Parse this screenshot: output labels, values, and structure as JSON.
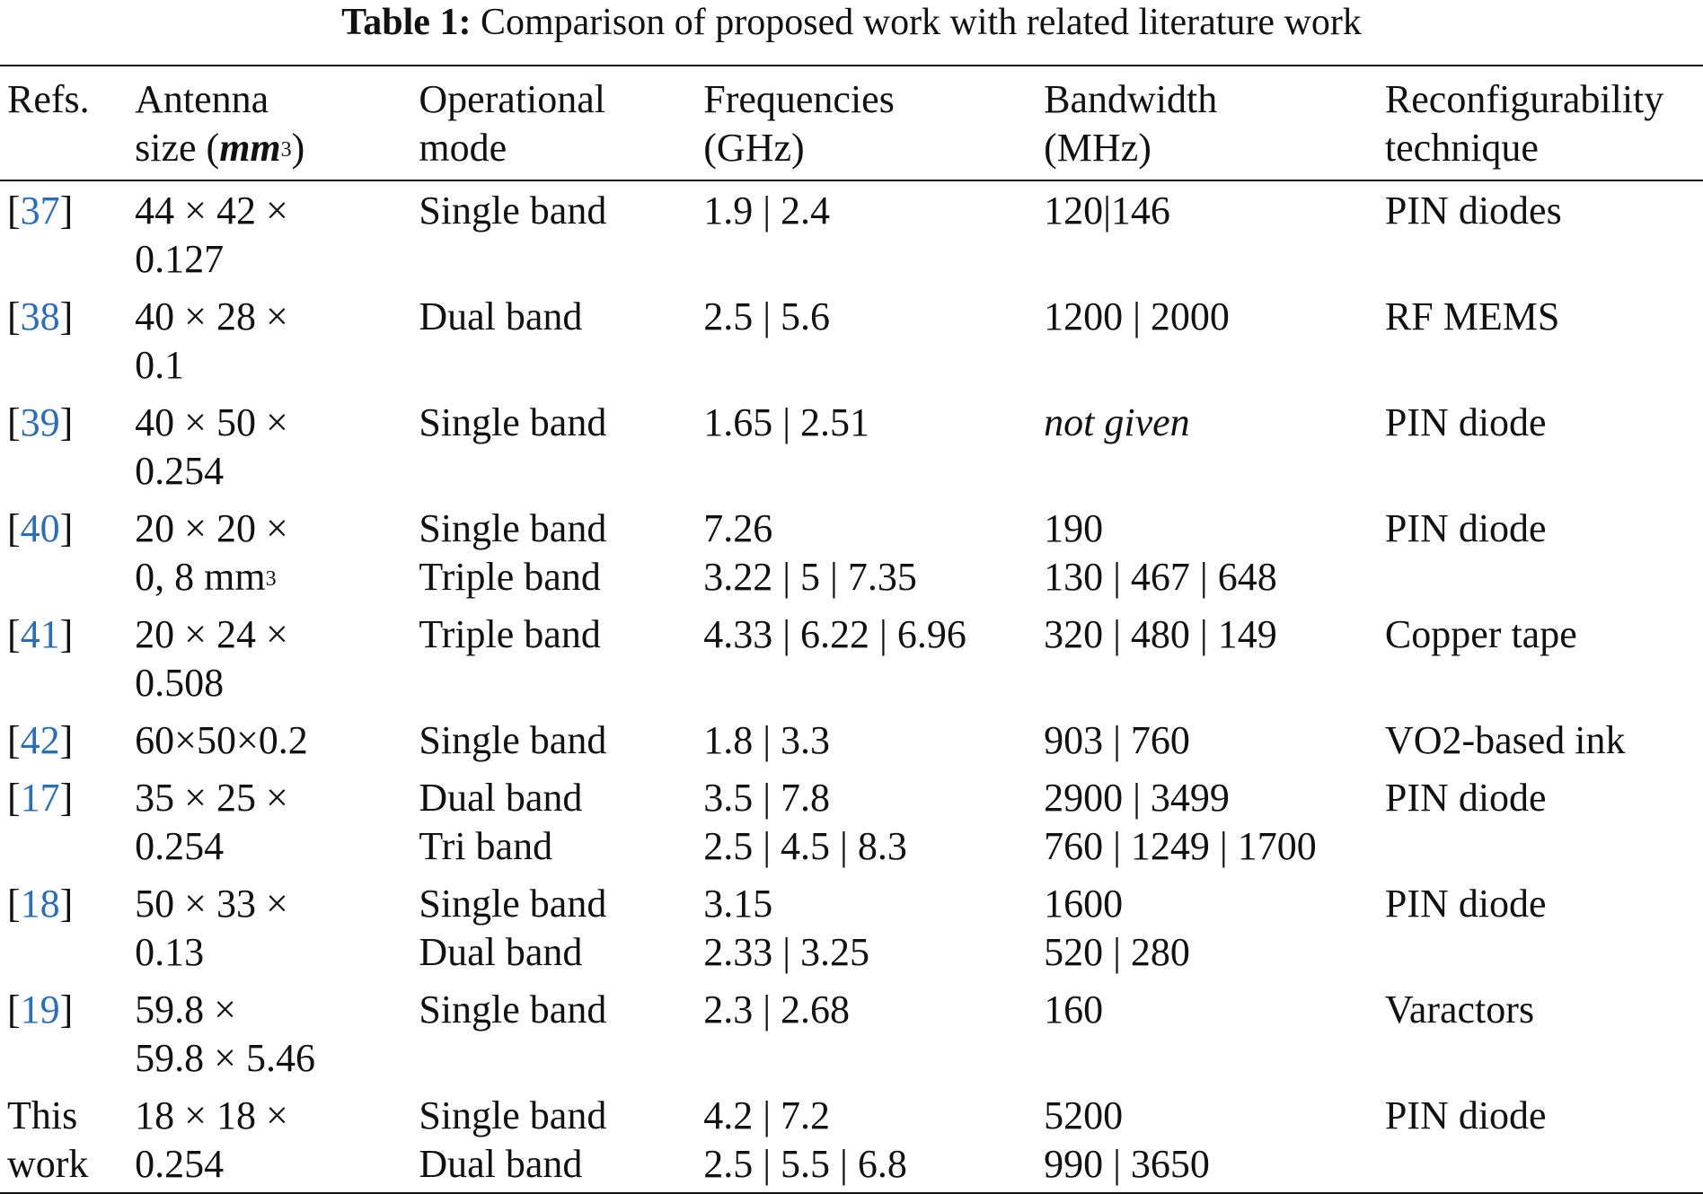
{
  "caption": {
    "label": "Table 1:",
    "text": "Comparison of proposed work with related literature work"
  },
  "headers": {
    "refs": "Refs.",
    "size_line1": "Antenna",
    "size_line2a": "size (",
    "size_unit": "mm",
    "size_sup": "3",
    "size_line2b": ")",
    "mode_line1": "Operational",
    "mode_line2": "mode",
    "freq_line1": "Frequencies",
    "freq_line2": "(GHz)",
    "bw_line1": "Bandwidth",
    "bw_line2": "(MHz)",
    "tech_line1": "Reconfigurability",
    "tech_line2": "technique"
  },
  "rows": [
    {
      "ref": "37",
      "size": [
        "44 × 42 ×",
        "0.127"
      ],
      "mode": [
        "Single band"
      ],
      "freq": [
        "1.9 | 2.4"
      ],
      "bw": [
        "120|146"
      ],
      "tech": "PIN diodes"
    },
    {
      "ref": "38",
      "size": [
        "40  ×  28  ×",
        "0.1"
      ],
      "mode": [
        "Dual band"
      ],
      "freq": [
        "2.5 | 5.6"
      ],
      "bw": [
        "1200 | 2000"
      ],
      "tech": "RF MEMS"
    },
    {
      "ref": "39",
      "size": [
        "40 × 50  ×",
        "0.254"
      ],
      "mode": [
        "Single band"
      ],
      "freq": [
        "1.65 | 2.51"
      ],
      "bw": [
        "not given"
      ],
      "tech": "PIN diode"
    },
    {
      "ref": "40",
      "size": [
        "20 × 20 ×",
        "0, 8 mm"
      ],
      "size_sup": "3",
      "mode": [
        "Single band",
        "Triple band"
      ],
      "freq": [
        "7.26",
        "3.22  | 5 |  7.35"
      ],
      "bw": [
        "190",
        "130  | 467 |  648"
      ],
      "tech": "PIN diode"
    },
    {
      "ref": "41",
      "size": [
        "20 × 24 ×",
        "0.508"
      ],
      "mode": [
        "Triple band"
      ],
      "freq": [
        "4.33  | 6.22 |  6.96"
      ],
      "bw": [
        "320  | 480 |  149"
      ],
      "tech": "Copper tape"
    },
    {
      "ref": "42",
      "size": [
        "60×50×0.2"
      ],
      "mode": [
        "Single band"
      ],
      "freq": [
        "1.8 | 3.3"
      ],
      "bw": [
        "903 | 760"
      ],
      "tech": "VO2-based ink"
    },
    {
      "ref": "17",
      "size": [
        "35 × 25 ×",
        "0.254"
      ],
      "mode": [
        "Dual band",
        "Tri band"
      ],
      "freq": [
        "3.5 | 7.8",
        "2.5  | 4.5 |  8.3"
      ],
      "bw": [
        "2900 | 3499",
        "760  | 1249 |  1700"
      ],
      "tech": "PIN diode"
    },
    {
      "ref": "18",
      "size": [
        "50 × 33 ×",
        "0.13"
      ],
      "mode": [
        "Single band",
        "Dual band"
      ],
      "freq": [
        "3.15",
        "2.33 |  3.25"
      ],
      "bw": [
        "1600",
        "520 | 280"
      ],
      "tech": "PIN diode"
    },
    {
      "ref": "19",
      "size": [
        "59.8 ×",
        "59.8 × 5.46"
      ],
      "mode": [
        "Single band"
      ],
      "freq": [
        "2.3 | 2.68"
      ],
      "bw": [
        "160"
      ],
      "tech": "Varactors"
    },
    {
      "ref_text": [
        "This",
        "work"
      ],
      "size": [
        "18 × 18  ×",
        "0.254"
      ],
      "mode": [
        "Single band",
        "Dual band"
      ],
      "freq": [
        "4.2 | 7.2",
        "2.5  | 5.5 |  6.8"
      ],
      "bw": [
        "5200",
        "990 | 3650"
      ],
      "tech": "PIN diode"
    }
  ]
}
